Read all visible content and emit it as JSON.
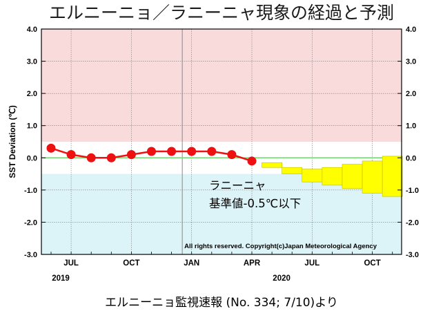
{
  "title": "エルニーニョ／ラニーニャ現象の経過と予測",
  "caption": "エルニーニョ監視速報 (No. 334; 7/10)より",
  "copyright": "All rights reserved. Copyright(c)Japan Meteorological Agency",
  "annotation": {
    "line1": "ラニーニャ",
    "line2": "基準値-0.5℃以下"
  },
  "colors": {
    "elnino_band": "#fadbdb",
    "lanina_band": "#dcf4f7",
    "observed": "#ee1111",
    "forecast": "#ffff00",
    "forecast_edge": "#c8c800",
    "zero_line": "#6fd86f"
  },
  "chart_data": {
    "type": "line",
    "title": "エルニーニョ／ラニーニャ現象の経過と予測",
    "ylabel": "SST Deviation (℃)",
    "xlabel": "",
    "ylim": [
      -3.0,
      4.0
    ],
    "y_ticks": [
      "4.0",
      "3.0",
      "2.0",
      "1.0",
      "0.0",
      "-1.0",
      "-2.0",
      "-3.0"
    ],
    "x_tick_labels": [
      "JUL",
      "OCT",
      "JAN",
      "APR",
      "JUL",
      "OCT"
    ],
    "x_tick_months": [
      "2019-07",
      "2019-10",
      "2020-01",
      "2020-04",
      "2020-07",
      "2020-10"
    ],
    "year_labels": [
      {
        "label": "2019",
        "month": "2019-06"
      },
      {
        "label": "2020",
        "month": "2020-05"
      }
    ],
    "grid": true,
    "thresholds": {
      "elnino": 0.5,
      "lanina": -0.5
    },
    "observed": {
      "months": [
        "2019-06",
        "2019-07",
        "2019-08",
        "2019-09",
        "2019-10",
        "2019-11",
        "2019-12",
        "2020-01",
        "2020-02",
        "2020-03",
        "2020-04"
      ],
      "values": [
        0.3,
        0.1,
        0.0,
        0.0,
        0.1,
        0.2,
        0.2,
        0.2,
        0.2,
        0.1,
        -0.1
      ]
    },
    "forecast_range": {
      "months": [
        "2020-05",
        "2020-06",
        "2020-07",
        "2020-08",
        "2020-09",
        "2020-10",
        "2020-11"
      ],
      "lower": [
        -0.3,
        -0.5,
        -0.75,
        -0.85,
        -0.95,
        -1.1,
        -1.2
      ],
      "upper": [
        -0.15,
        -0.3,
        -0.35,
        -0.3,
        -0.2,
        -0.1,
        0.05
      ]
    }
  }
}
